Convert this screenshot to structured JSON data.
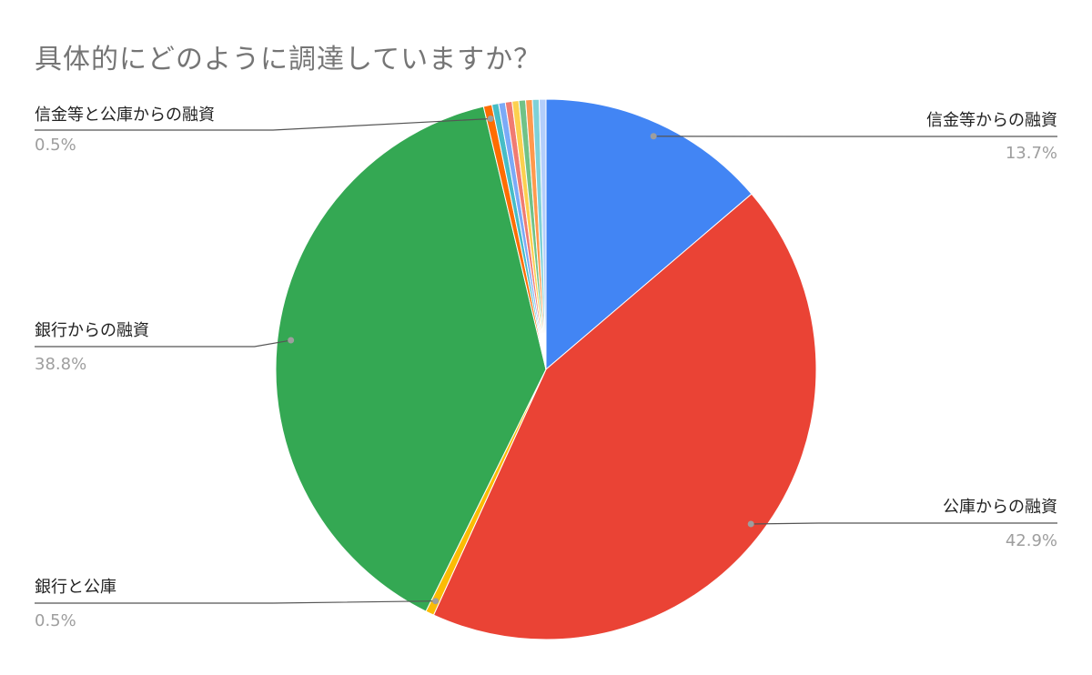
{
  "chart_data": {
    "type": "pie",
    "title": "具体的にどのように調達していますか？",
    "slices": [
      {
        "label": "信金等からの融資",
        "value": 13.7,
        "pct_text": "13.7%",
        "color": "#4285f4"
      },
      {
        "label": "公庫からの融資",
        "value": 42.9,
        "pct_text": "42.9%",
        "color": "#ea4335"
      },
      {
        "label": "銀行と公庫",
        "value": 0.5,
        "pct_text": "0.5%",
        "color": "#fbbc04"
      },
      {
        "label": "銀行からの融資",
        "value": 38.8,
        "pct_text": "38.8%",
        "color": "#34a853"
      },
      {
        "label": "信金等と公庫からの融資",
        "value": 0.5,
        "pct_text": "0.5%",
        "color": "#ff6d01"
      },
      {
        "label": "",
        "value": 0.4,
        "color": "#46bdc6"
      },
      {
        "label": "",
        "value": 0.4,
        "color": "#7baaf7"
      },
      {
        "label": "",
        "value": 0.4,
        "color": "#f07b72"
      },
      {
        "label": "",
        "value": 0.4,
        "color": "#fcd04f"
      },
      {
        "label": "",
        "value": 0.4,
        "color": "#71c287"
      },
      {
        "label": "",
        "value": 0.4,
        "color": "#ff994d"
      },
      {
        "label": "",
        "value": 0.4,
        "color": "#7ed1d7"
      },
      {
        "label": "",
        "value": 0.4,
        "color": "#b3cefb"
      }
    ],
    "legend": "none",
    "grid": false
  }
}
